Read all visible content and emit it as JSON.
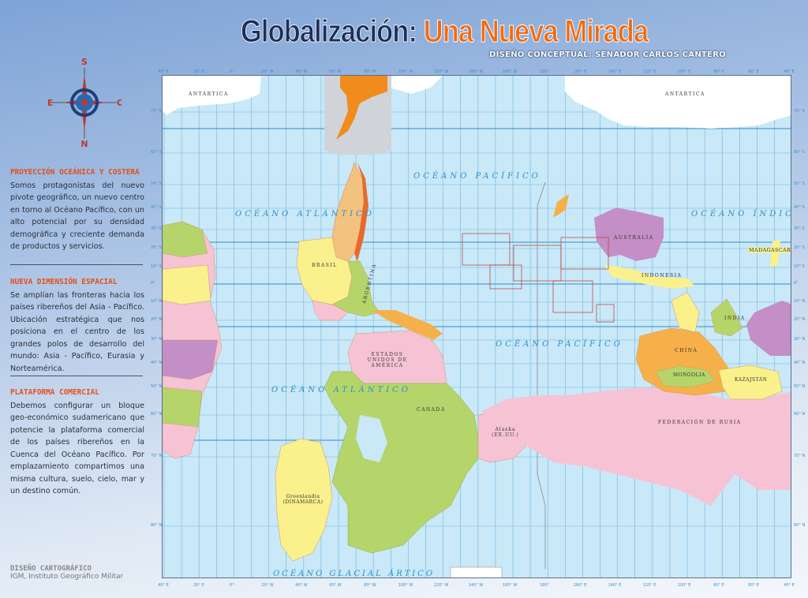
{
  "header": {
    "title_part1": "Globalización:",
    "title_part2": "Una Nueva Mirada",
    "subtitle": "DISEÑO CONCEPTUAL: SENADOR CARLOS CANTERO"
  },
  "compass": {
    "top": "S",
    "bottom": "N",
    "left": "E",
    "right": "O",
    "accent": "#c0392b"
  },
  "sections": [
    {
      "heading": "PROYECCIÓN OCEÁNICA Y COSTERA",
      "text": "Somos protagonistas del nuevo pivote geográfico, un nuevo centro en torno al Océano Pacífico, con un alto potencial por su densidad demográfica y creciente demanda de productos y servicios."
    },
    {
      "heading": "NUEVA DIMENSIÓN ESPACIAL",
      "text": "Se amplían las fronteras hacia los países ribereños del Asia - Pacífico. Ubicación estratégica que nos posiciona en el centro de los grandes polos de desarrollo del mundo: Asia - Pacífico, Eurasia y Norteamérica."
    },
    {
      "heading": "PLATAFORMA COMERCIAL",
      "text": "Debemos configurar un bloque geo-económico sudamericano que potencie la plataforma comercial de los países ribereños en la Cuenca del Océano Pacífico. Por emplazamiento compartimos una misma cultura, suelo, cielo, mar y un destino común."
    }
  ],
  "credits": {
    "heading": "DISEÑO CARTOGRÁFICO",
    "text": "IGM, Instituto Geográfico Militar"
  },
  "map": {
    "longitudes": [
      "40° E",
      "20° E",
      "0°",
      "20° W",
      "40° W",
      "60° W",
      "80° W",
      "100° W",
      "120° W",
      "140° W",
      "160° W",
      "180°",
      "160° E",
      "140° E",
      "120° E",
      "100° E",
      "80° E",
      "60° E",
      "40° E"
    ],
    "latitudes": [
      "70° S",
      "60° S",
      "50° S",
      "40° S",
      "30° S",
      "20° S",
      "10° S",
      "0°",
      "10° N",
      "20° N",
      "30° N",
      "40° N",
      "50° N",
      "60° N",
      "70° N",
      "80° N"
    ],
    "oceans": {
      "pacifico_1": "OCÉANO PACÍFICO",
      "pacifico_2": "OCÉANO PACÍFICO",
      "atlantico_1": "OCÉANO ATLÁNTICO",
      "atlantico_2": "OCÉANO ATLÁNTICO",
      "indico": "OCÉANO ÍNDICO",
      "artico": "OCÉANO GLACIAL ÁRTICO"
    },
    "regions": {
      "antartica_1": "ANTÁRTICA",
      "antartica_2": "ANTÁRTICA",
      "brasil": "BRASIL",
      "argentina": "ARGENTINA",
      "usa": "ESTADOS UNIDOS DE AMÉRICA",
      "canada": "CANADÁ",
      "alaska": "Alaska (EE.UU.)",
      "groenlandia": "Groenlandia (DINAMARCA)",
      "rusia": "FEDERACIÓN DE RUSIA",
      "china": "CHINA",
      "mongolia": "MONGOLIA",
      "kazajstan": "KAZAJSTÁN",
      "india": "INDIA",
      "australia": "AUSTRALIA",
      "indonesia": "INDONESIA",
      "madagascar": "MADAGASCAR"
    },
    "colors": {
      "ocean": "#c9e8f8",
      "grid": "#6fb6e0",
      "pink": "#f6c3d4",
      "green": "#b5d56a",
      "yellow": "#fbf18c",
      "orange": "#f6b04a",
      "purple": "#c48ec6",
      "tan": "#f3c27e"
    }
  }
}
